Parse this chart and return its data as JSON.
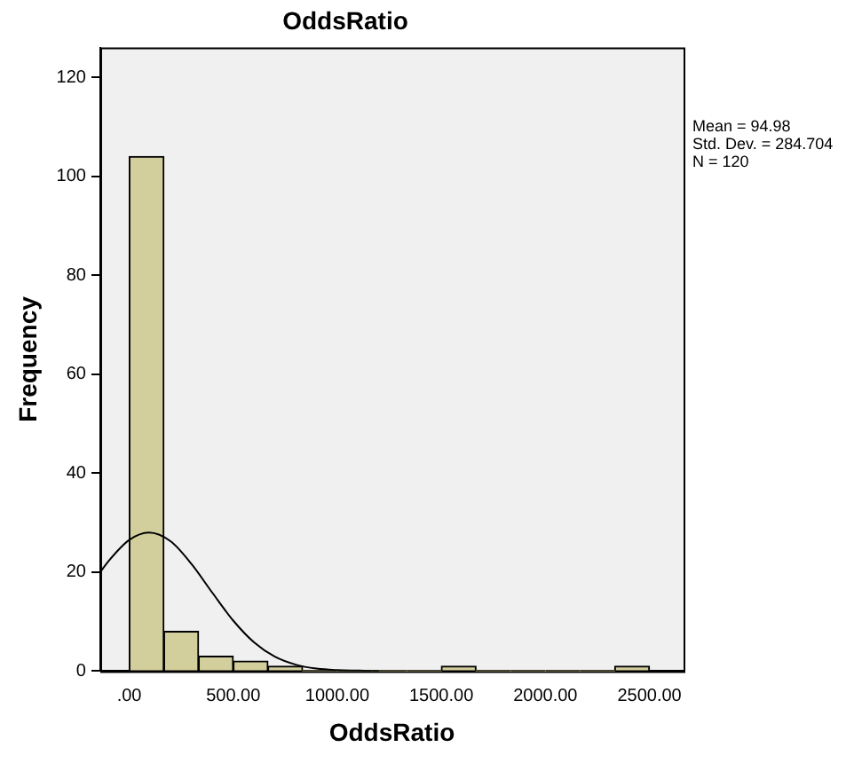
{
  "chart_data": {
    "type": "histogram",
    "title": "OddsRatio",
    "xlabel": "OddsRatio",
    "ylabel": "Frequency",
    "bins": [
      0,
      166.67,
      333.33,
      500,
      666.67,
      833.33,
      1000,
      1166.67,
      1333.33,
      1500,
      1666.67,
      1833.33,
      2000,
      2166.67,
      2333.33,
      2500
    ],
    "values": [
      104,
      8,
      3,
      2,
      1,
      0,
      0,
      0,
      0,
      1,
      0,
      0,
      0,
      0,
      1
    ],
    "color": "#d3cf9c",
    "series": [
      {
        "type": "line",
        "color": "#000000",
        "x": [
          -139,
          -100,
          0,
          95,
          200,
          300,
          400,
          500,
          600,
          700,
          800,
          900,
          1000,
          1100,
          1200
        ],
        "values": [
          20,
          22.2,
          26.5,
          28,
          26.2,
          21.6,
          15.8,
          10.2,
          5.8,
          2.9,
          1.3,
          0.5,
          0.2,
          0.1,
          0
        ]
      }
    ],
    "xlim": [
      -139,
      2664
    ],
    "xticks": [
      {
        "value": 0,
        "label": ".00"
      },
      {
        "value": 500,
        "label": "500.00"
      },
      {
        "value": 1000,
        "label": "1000.00"
      },
      {
        "value": 1500,
        "label": "1500.00"
      },
      {
        "value": 2000,
        "label": "2000.00"
      },
      {
        "value": 2500,
        "label": "2500.00"
      }
    ],
    "ylim": [
      0,
      126
    ],
    "yticks": [
      0,
      20,
      40,
      60,
      80,
      100,
      120
    ],
    "grid": false,
    "legend": false,
    "marker": "none",
    "annotations": [
      "Mean = 94.98",
      "Std. Dev. = 284.704",
      "N = 120"
    ]
  }
}
